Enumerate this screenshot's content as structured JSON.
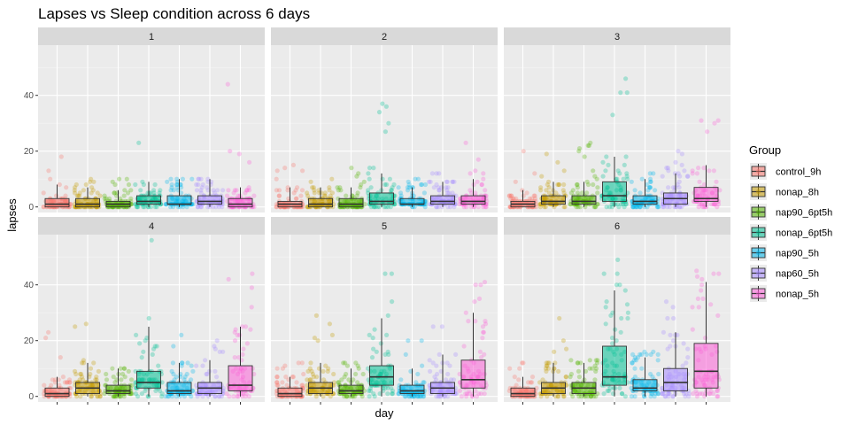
{
  "chart_data": {
    "type": "box",
    "title": "Lapses vs Sleep condition across 6 days",
    "xlabel": "day",
    "ylabel": "lapses",
    "ylim": [
      -2,
      58
    ],
    "yticks": [
      0,
      20,
      40
    ],
    "grid": true,
    "facets": [
      "1",
      "2",
      "3",
      "4",
      "5",
      "6"
    ],
    "legend": {
      "title": "Group",
      "position": "right"
    },
    "series": [
      {
        "name": "control_9h",
        "color": "#F8766D"
      },
      {
        "name": "nonap_8h",
        "color": "#C49A00"
      },
      {
        "name": "nap90_6pt5h",
        "color": "#53B400"
      },
      {
        "name": "nonap_6pt5h",
        "color": "#00C094"
      },
      {
        "name": "nap90_5h",
        "color": "#00B6EB"
      },
      {
        "name": "nap60_5h",
        "color": "#A58AFF"
      },
      {
        "name": "nonap_5h",
        "color": "#FB61D7"
      }
    ],
    "boxes": [
      [
        [
          0,
          0,
          1,
          3,
          8,
          18
        ],
        [
          0,
          0,
          1,
          3,
          7,
          10
        ],
        [
          0,
          0,
          1,
          2,
          6,
          10
        ],
        [
          0,
          1,
          2,
          4,
          9,
          23
        ],
        [
          0,
          1,
          1,
          4,
          10,
          10
        ],
        [
          0,
          1,
          2,
          4,
          10,
          10
        ],
        [
          0,
          0,
          1,
          3,
          7,
          44
        ]
      ],
      [
        [
          0,
          0,
          1,
          2,
          7,
          15
        ],
        [
          0,
          0,
          1,
          3,
          7,
          10
        ],
        [
          0,
          0,
          1,
          3,
          7,
          14
        ],
        [
          0,
          1,
          2,
          5,
          12,
          37
        ],
        [
          0,
          1,
          1,
          3,
          7,
          10
        ],
        [
          0,
          1,
          2,
          4,
          9,
          12
        ],
        [
          0,
          1,
          2,
          4,
          10,
          23
        ]
      ],
      [
        [
          0,
          0,
          1,
          2,
          6,
          20
        ],
        [
          0,
          1,
          2,
          4,
          9,
          19
        ],
        [
          0,
          1,
          2,
          4,
          9,
          23
        ],
        [
          0,
          2,
          4,
          9,
          18,
          46
        ],
        [
          0,
          1,
          2,
          4,
          10,
          12
        ],
        [
          0,
          1,
          3,
          5,
          12,
          20
        ],
        [
          0,
          2,
          3,
          7,
          15,
          31
        ]
      ],
      [
        [
          0,
          0,
          1,
          3,
          7,
          23
        ],
        [
          0,
          1,
          3,
          5,
          12,
          26
        ],
        [
          0,
          1,
          2,
          4,
          10,
          10
        ],
        [
          0,
          3,
          5,
          9,
          25,
          56
        ],
        [
          0,
          1,
          2,
          5,
          12,
          22
        ],
        [
          0,
          1,
          3,
          5,
          13,
          20
        ],
        [
          0,
          2,
          4,
          11,
          25,
          44
        ]
      ],
      [
        [
          0,
          0,
          1,
          3,
          7,
          12
        ],
        [
          0,
          1,
          3,
          5,
          12,
          29
        ],
        [
          0,
          1,
          2,
          4,
          10,
          12
        ],
        [
          0,
          4,
          7,
          11,
          28,
          44
        ],
        [
          0,
          1,
          2,
          4,
          10,
          20
        ],
        [
          0,
          1,
          3,
          5,
          15,
          25
        ],
        [
          0,
          3,
          6,
          13,
          30,
          41
        ]
      ],
      [
        [
          0,
          0,
          1,
          3,
          7,
          12
        ],
        [
          0,
          1,
          3,
          5,
          12,
          28
        ],
        [
          0,
          1,
          3,
          5,
          12,
          13
        ],
        [
          0,
          4,
          7,
          18,
          38,
          49
        ],
        [
          0,
          2,
          3,
          6,
          14,
          16
        ],
        [
          0,
          2,
          5,
          10,
          23,
          34
        ],
        [
          0,
          3,
          9,
          19,
          41,
          45
        ]
      ]
    ]
  }
}
